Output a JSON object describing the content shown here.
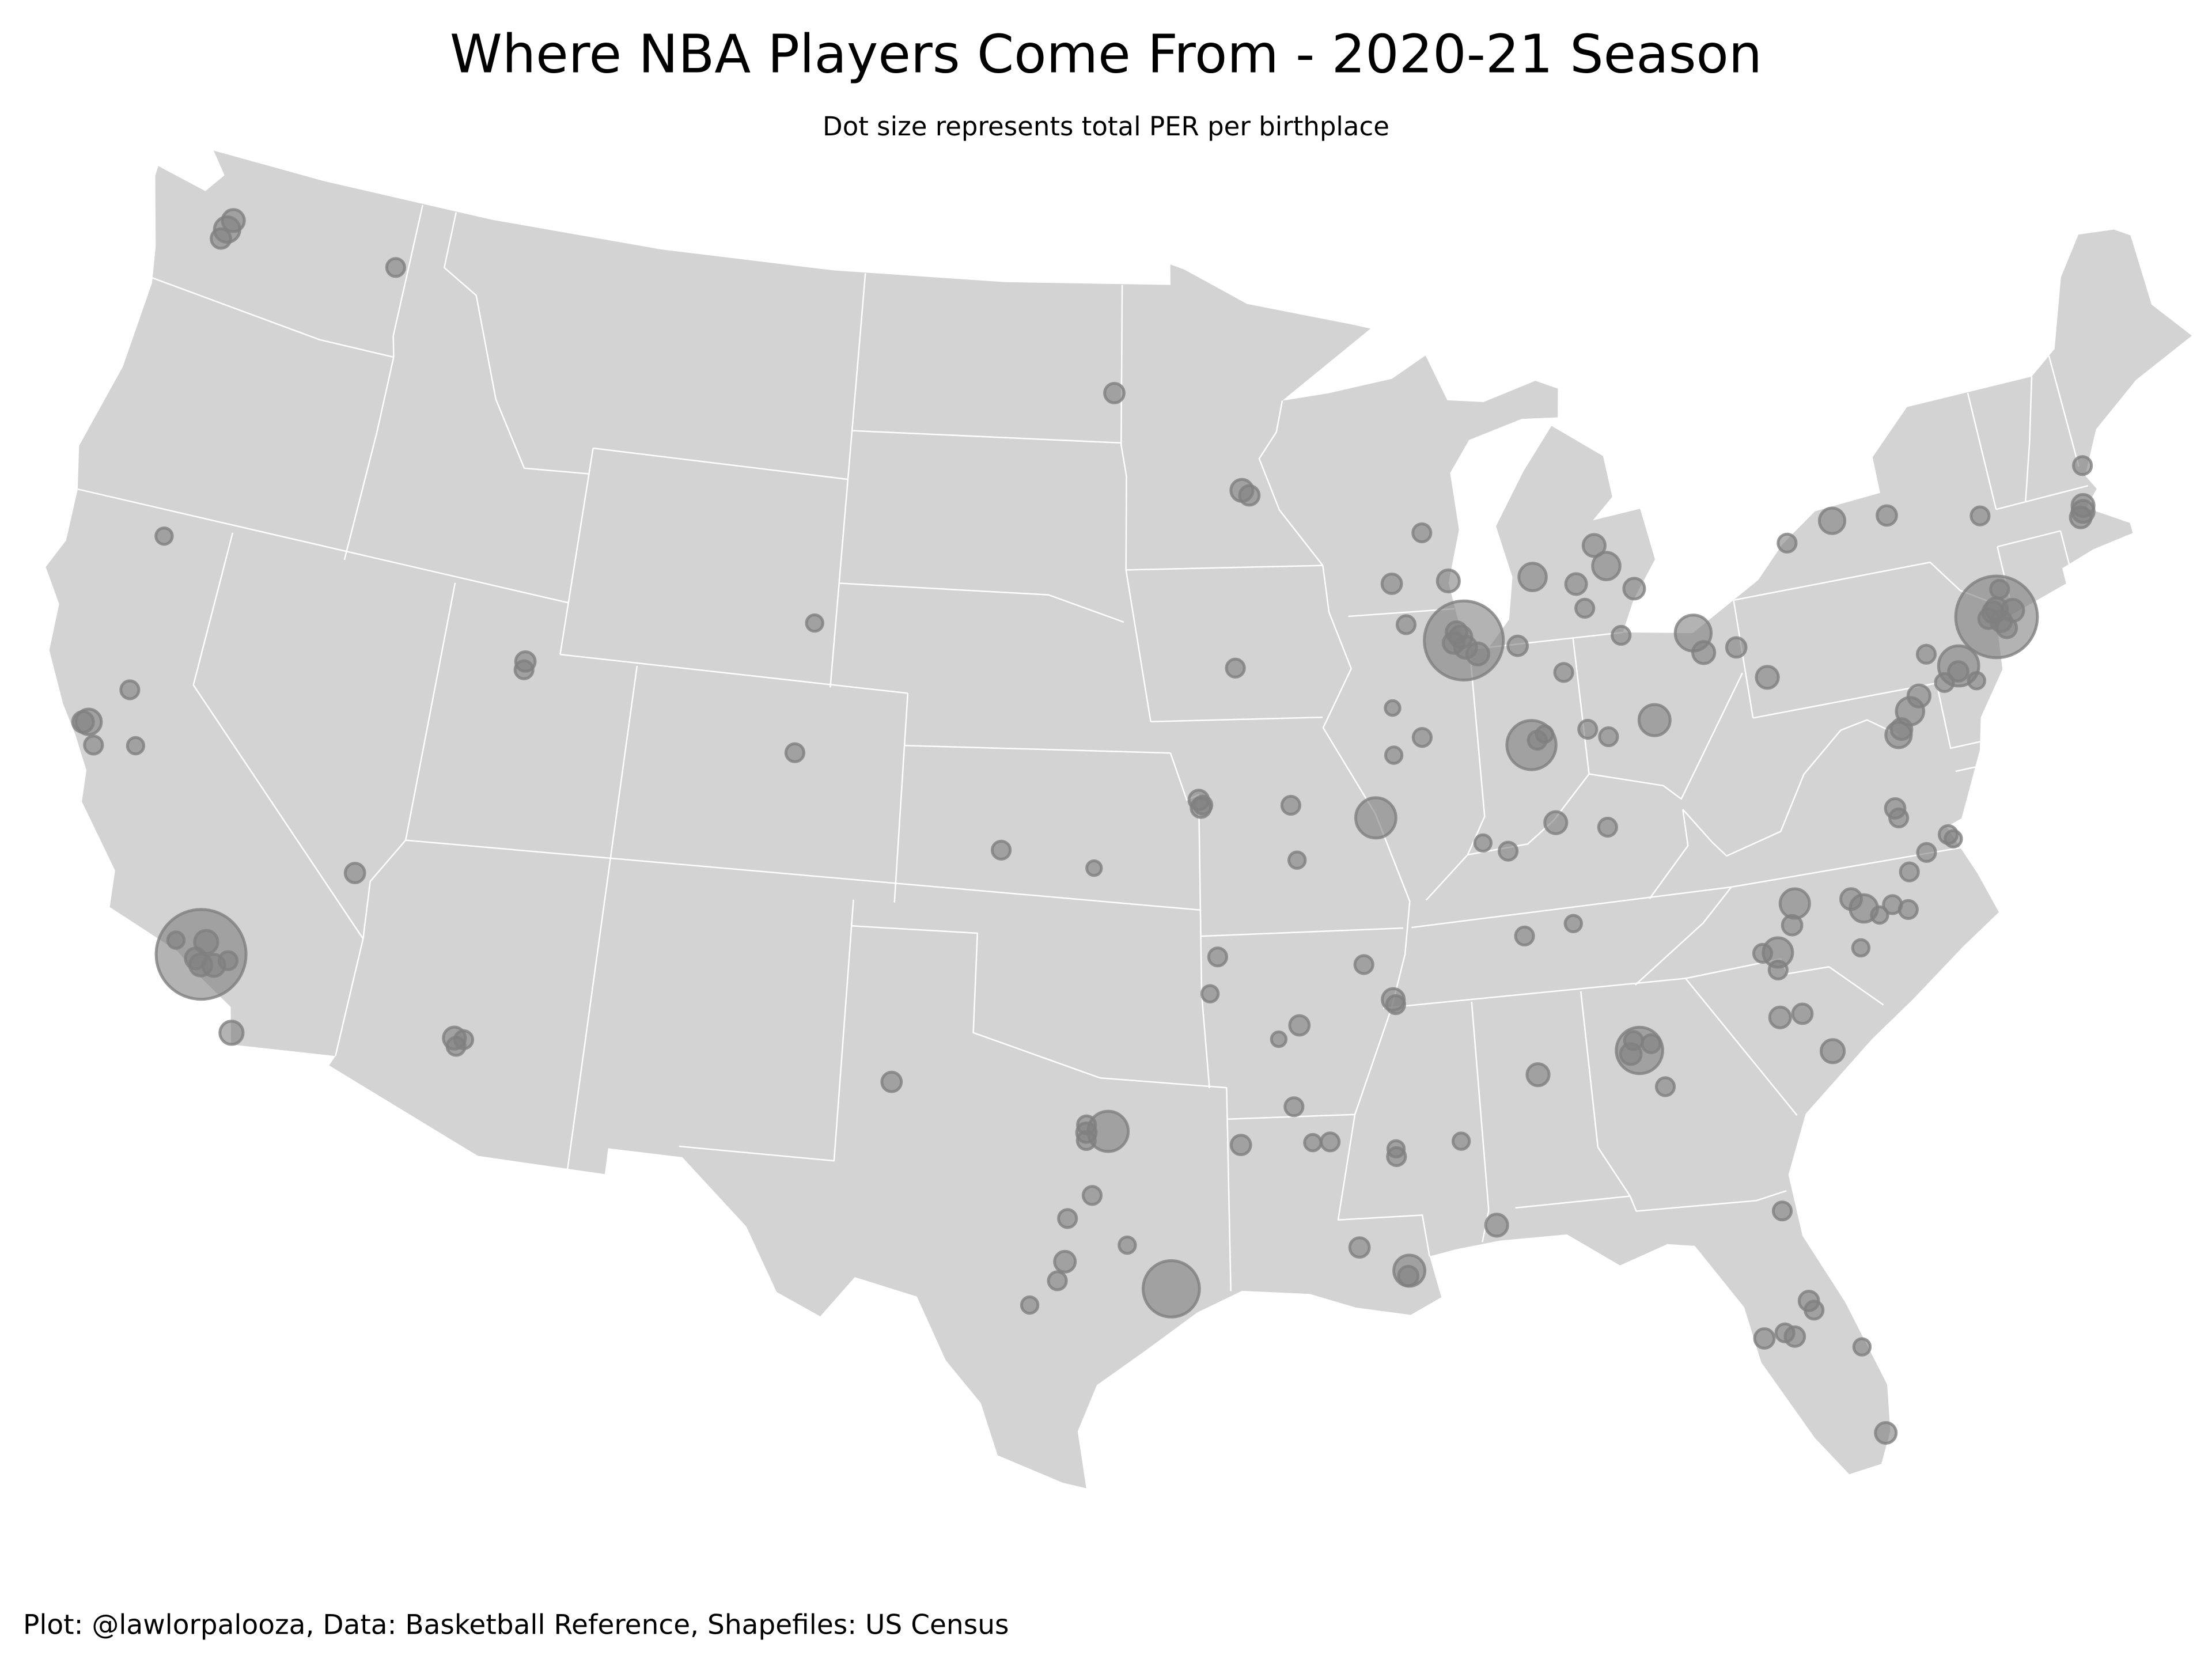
{
  "chart_data": {
    "type": "bubble-map",
    "title": "Where NBA Players Come From - 2020-21 Season",
    "subtitle": "Dot size represents total PER per birthplace",
    "caption": "Plot: @lawlorpalooza, Data: Basketball Reference, Shapefiles: US Census",
    "color": "#808080",
    "lon": [
      -122.3,
      -122.2,
      -122.4,
      -117.4,
      -96.8,
      -93.3,
      -93.1,
      -121.7,
      -121.5,
      -122.27,
      -122.4,
      -122.0,
      -121.0,
      -115.1,
      -118.25,
      -118.2,
      -118.9,
      -118.35,
      -118.2,
      -117.9,
      -117.6,
      -117.15,
      -112.07,
      -111.85,
      -112.0,
      -111.9,
      -111.9,
      -104.6,
      -104.8,
      -101.85,
      -97.2,
      -99.5,
      -96.8,
      -97.3,
      -97.3,
      -97.3,
      -95.37,
      -97.15,
      -97.7,
      -96.35,
      -97.74,
      -97.9,
      -98.5,
      -94.2,
      -94.4,
      -92.3,
      -92.8,
      -92.5,
      -93.75,
      -92.1,
      -91.7,
      -90.2,
      -90.2,
      -88.7,
      -91.15,
      -90.07,
      -90.1,
      -88.05,
      -86.8,
      -84.39,
      -84.6,
      -84.5,
      -84.1,
      -83.9,
      -90.05,
      -90.0,
      -90.7,
      -86.8,
      -85.6,
      -90.2,
      -92.3,
      -92.2,
      -94.6,
      -94.55,
      -94.5,
      -93.6,
      -87.9,
      -88.5,
      -89.4,
      -89.1,
      -87.63,
      -87.7,
      -87.6,
      -87.3,
      -87.8,
      -87.9,
      -89.6,
      -89.65,
      -88.9,
      -86.16,
      -86.0,
      -85.8,
      -84.7,
      -87.6,
      -87.0,
      -85.76,
      -84.5,
      -86.25,
      -85.14,
      -84.4,
      -83.05,
      -83.7,
      -83.95,
      -84.55,
      -85.67,
      -83.55,
      -81.69,
      -81.5,
      -80.65,
      -82.99,
      -84.2,
      -79.99,
      -78.88,
      -77.6,
      -76.15,
      -73.75,
      -71.06,
      -71.1,
      -71.2,
      -70.8,
      -73.94,
      -74.0,
      -73.85,
      -73.9,
      -73.5,
      -74.15,
      -73.75,
      -73.7,
      -75.16,
      -75.2,
      -75.9,
      -74.8,
      -75.6,
      -76.3,
      -76.6,
      -77.0,
      -76.9,
      -77.44,
      -77.4,
      -76.3,
      -76.2,
      -80.25,
      -80.4,
      -80.84,
      -81.2,
      -80.9,
      -78.9,
      -78.64,
      -78.3,
      -77.95,
      -77.6,
      -78.88,
      -77.4,
      -76.9,
      -81.03,
      -80.5,
      -79.95,
      -81.66,
      -81.38,
      -81.3,
      -82.46,
      -82.0,
      -81.8,
      -80.4,
      -80.2
    ],
    "lat": [
      47.6,
      47.8,
      47.4,
      47.7,
      46.9,
      45.0,
      44.9,
      41.6,
      38.6,
      37.8,
      37.77,
      37.4,
      37.6,
      36.2,
      34.05,
      34.3,
      34.2,
      33.95,
      33.85,
      33.9,
      34.05,
      32.72,
      33.45,
      33.45,
      33.3,
      40.76,
      40.6,
      42.2,
      39.7,
      33.58,
      37.8,
      38.1,
      32.78,
      32.9,
      32.75,
      32.6,
      29.76,
      31.55,
      31.1,
      30.6,
      30.27,
      29.9,
      29.42,
      36.1,
      35.4,
      34.75,
      34.5,
      33.2,
      32.5,
      32.5,
      32.5,
      32.3,
      32.15,
      32.36,
      30.45,
      29.95,
      29.85,
      30.7,
      33.5,
      33.75,
      33.7,
      33.95,
      33.85,
      33.0,
      35.15,
      35.05,
      35.85,
      36.16,
      36.3,
      38.63,
      38.95,
      37.9,
      39.1,
      38.95,
      39.0,
      41.6,
      43.04,
      44.0,
      43.07,
      42.27,
      41.88,
      41.95,
      41.75,
      41.6,
      42.05,
      41.85,
      40.7,
      39.8,
      40.1,
      39.77,
      39.85,
      39.95,
      39.95,
      38.0,
      37.8,
      38.25,
      38.05,
      41.68,
      41.08,
      42.25,
      42.5,
      43.0,
      43.42,
      42.73,
      42.96,
      41.65,
      41.5,
      41.1,
      41.1,
      39.96,
      39.76,
      40.44,
      42.9,
      43.16,
      43.05,
      42.65,
      42.36,
      42.25,
      42.15,
      43.1,
      40.7,
      40.8,
      40.6,
      40.85,
      40.75,
      40.7,
      40.45,
      41.2,
      39.95,
      39.85,
      40.3,
      39.6,
      39.7,
      39.55,
      39.3,
      38.9,
      39.0,
      37.54,
      37.35,
      36.85,
      36.75,
      36.1,
      35.7,
      35.23,
      35.26,
      34.9,
      36.0,
      35.78,
      35.6,
      35.75,
      35.6,
      35.05,
      36.3,
      36.6,
      34.0,
      34.0,
      33.2,
      30.33,
      28.54,
      28.35,
      27.95,
      28.0,
      27.9,
      27.5,
      25.78
    ],
    "size": [
      12,
      9,
      7,
      6,
      7,
      9,
      7,
      5,
      6,
      12,
      8,
      6,
      5,
      7,
      150,
      10,
      5,
      8,
      9,
      9,
      6,
      10,
      9,
      6,
      6,
      7,
      6,
      5,
      6,
      7,
      4,
      6,
      30,
      6,
      7,
      6,
      59,
      6,
      6,
      5,
      8,
      6,
      5,
      6,
      5,
      7,
      4,
      6,
      7,
      5,
      6,
      5,
      6,
      5,
      7,
      18,
      7,
      9,
      9,
      40,
      8,
      6,
      6,
      6,
      9,
      6,
      6,
      6,
      5,
      30,
      6,
      5,
      7,
      7,
      6,
      6,
      9,
      6,
      7,
      6,
      116,
      9,
      9,
      9,
      8,
      8,
      4,
      5,
      6,
      45,
      6,
      5,
      6,
      5,
      6,
      9,
      6,
      7,
      6,
      6,
      8,
      14,
      9,
      8,
      14,
      6,
      24,
      9,
      7,
      18,
      6,
      9,
      6,
      12,
      7,
      6,
      9,
      9,
      8,
      6,
      124,
      8,
      8,
      9,
      9,
      7,
      7,
      6,
      30,
      7,
      6,
      5,
      6,
      9,
      14,
      12,
      8,
      7,
      6,
      6,
      5,
      16,
      7,
      16,
      6,
      6,
      8,
      14,
      5,
      6,
      6,
      5,
      6,
      6,
      8,
      7,
      10,
      6,
      7,
      6,
      7,
      6,
      7,
      5,
      8
    ]
  }
}
